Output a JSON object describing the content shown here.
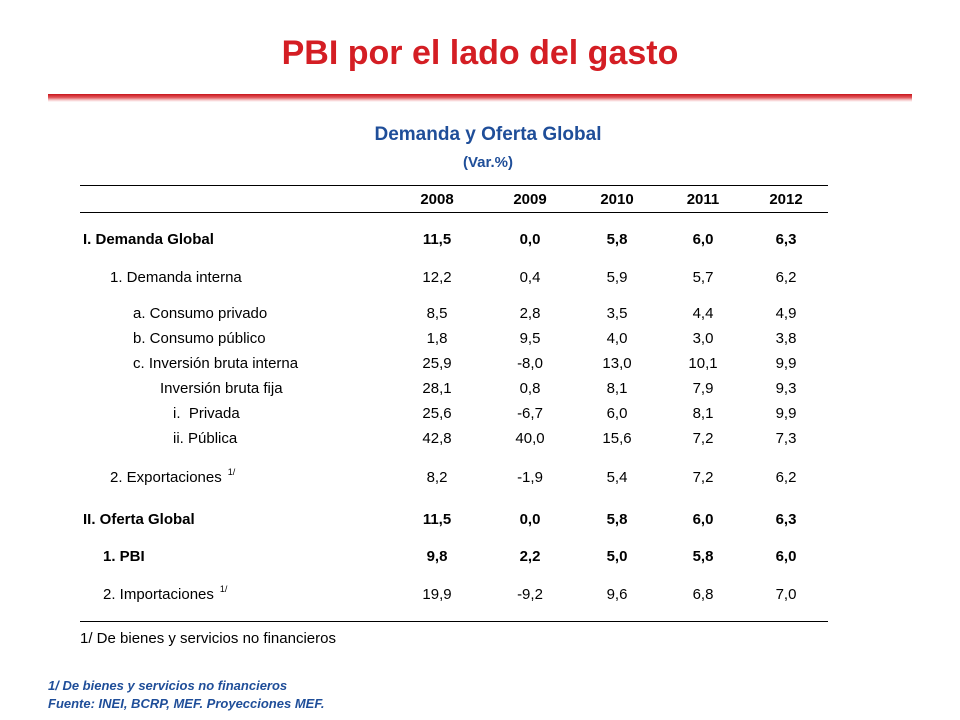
{
  "slide": {
    "title": "PBI por el lado del gasto"
  },
  "table": {
    "title": "Demanda y Oferta Global",
    "subtitle": "(Var.%)",
    "years": [
      "2008",
      "2009",
      "2010",
      "2011",
      "2012"
    ],
    "rows": [
      {
        "label": "I. Demanda Global",
        "values": [
          "11,5",
          "0,0",
          "5,8",
          "6,0",
          "6,3"
        ],
        "bold": true
      },
      {
        "label": "1. Demanda interna",
        "values": [
          "12,2",
          "0,4",
          "5,9",
          "5,7",
          "6,2"
        ],
        "bold": false
      },
      {
        "label": "a. Consumo privado",
        "values": [
          "8,5",
          "2,8",
          "3,5",
          "4,4",
          "4,9"
        ],
        "bold": false
      },
      {
        "label": "b. Consumo público",
        "values": [
          "1,8",
          "9,5",
          "4,0",
          "3,0",
          "3,8"
        ],
        "bold": false
      },
      {
        "label": "c. Inversión bruta interna",
        "values": [
          "25,9",
          "-8,0",
          "13,0",
          "10,1",
          "9,9"
        ],
        "bold": false
      },
      {
        "label": "Inversión bruta fija",
        "values": [
          "28,1",
          "0,8",
          "8,1",
          "7,9",
          "9,3"
        ],
        "bold": false
      },
      {
        "label": "i.  Privada",
        "values": [
          "25,6",
          "-6,7",
          "6,0",
          "8,1",
          "9,9"
        ],
        "bold": false
      },
      {
        "label": "ii. Pública",
        "values": [
          "42,8",
          "40,0",
          "15,6",
          "7,2",
          "7,3"
        ],
        "bold": false
      },
      {
        "label": "2. Exportaciones",
        "sup": "1/",
        "values": [
          "8,2",
          "-1,9",
          "5,4",
          "7,2",
          "6,2"
        ],
        "bold": false
      },
      {
        "label": "II. Oferta Global",
        "values": [
          "11,5",
          "0,0",
          "5,8",
          "6,0",
          "6,3"
        ],
        "bold": true
      },
      {
        "label": "1. PBI",
        "values": [
          "9,8",
          "2,2",
          "5,0",
          "5,8",
          "6,0"
        ],
        "bold": true
      },
      {
        "label": "2. Importaciones",
        "sup": "1/",
        "values": [
          "19,9",
          "-9,2",
          "9,6",
          "6,8",
          "7,0"
        ],
        "bold": false
      }
    ],
    "footnote": "1/ De bienes y servicios no financieros"
  },
  "source_notes": {
    "line1": "1/ De bienes y servicios no financieros",
    "line2": "Fuente:  INEI, BCRP, MEF. Proyecciones MEF."
  }
}
